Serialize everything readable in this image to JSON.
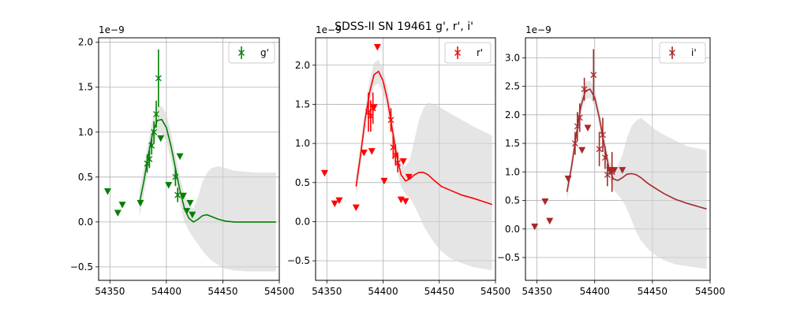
{
  "figure": {
    "title": "SDSS-II SN 19461  g', r', i'"
  },
  "chart_data": [
    {
      "type": "scatter",
      "band": "g",
      "color": "#008000",
      "xlim": [
        54340,
        54500
      ],
      "ylim": [
        -0.65,
        2.05
      ],
      "y_multiplier": "1e−9",
      "xticks": [
        54350,
        54400,
        54450,
        54500
      ],
      "yticks": [
        -0.5,
        0.0,
        0.5,
        1.0,
        1.5,
        2.0
      ],
      "ytick_labels": [
        "−0.5",
        "0.0",
        "0.5",
        "1.0",
        "1.5",
        "2.0"
      ],
      "legend": {
        "label": "g'",
        "loc": "upper right"
      },
      "grid": true,
      "detections": [
        {
          "x": 54383,
          "y": 0.65,
          "err": 0.1
        },
        {
          "x": 54385,
          "y": 0.7,
          "err": 0.1
        },
        {
          "x": 54387,
          "y": 0.85,
          "err": 0.1
        },
        {
          "x": 54389,
          "y": 1.0,
          "err": 0.12
        },
        {
          "x": 54391,
          "y": 1.2,
          "err": 0.15
        },
        {
          "x": 54393,
          "y": 1.6,
          "err": 0.32
        },
        {
          "x": 54408,
          "y": 0.5,
          "err": 0.1
        },
        {
          "x": 54410,
          "y": 0.3,
          "err": 0.08
        }
      ],
      "upper_limits": [
        {
          "x": 54348,
          "y": 0.34
        },
        {
          "x": 54357,
          "y": 0.1
        },
        {
          "x": 54361,
          "y": 0.19
        },
        {
          "x": 54377,
          "y": 0.21
        },
        {
          "x": 54395,
          "y": 0.93
        },
        {
          "x": 54402,
          "y": 0.41
        },
        {
          "x": 54412,
          "y": 0.73
        },
        {
          "x": 54415,
          "y": 0.29
        },
        {
          "x": 54418,
          "y": 0.12
        },
        {
          "x": 54421,
          "y": 0.21
        },
        {
          "x": 54423,
          "y": 0.08
        }
      ],
      "model": {
        "x": [
          54376,
          54380,
          54384,
          54388,
          54392,
          54396,
          54400,
          54404,
          54408,
          54412,
          54416,
          54420,
          54424,
          54428,
          54432,
          54436,
          54440,
          54446,
          54452,
          54460,
          54470,
          54480,
          54497
        ],
        "y": [
          0.2,
          0.45,
          0.75,
          1.0,
          1.13,
          1.14,
          1.05,
          0.85,
          0.6,
          0.35,
          0.15,
          0.04,
          0.0,
          0.03,
          0.07,
          0.08,
          0.06,
          0.03,
          0.01,
          0.0,
          0.0,
          0.0,
          0.0
        ],
        "lower": [
          0.05,
          0.3,
          0.6,
          0.85,
          0.98,
          0.99,
          0.9,
          0.7,
          0.45,
          0.2,
          0.0,
          -0.1,
          -0.18,
          -0.25,
          -0.32,
          -0.38,
          -0.43,
          -0.48,
          -0.52,
          -0.54,
          -0.55,
          -0.55,
          -0.55
        ],
        "upper": [
          0.35,
          0.6,
          0.9,
          1.15,
          1.28,
          1.29,
          1.2,
          1.0,
          0.75,
          0.5,
          0.3,
          0.18,
          0.15,
          0.28,
          0.45,
          0.55,
          0.6,
          0.62,
          0.6,
          0.57,
          0.56,
          0.55,
          0.55
        ]
      }
    },
    {
      "type": "scatter",
      "band": "r",
      "color": "#ff0000",
      "xlim": [
        54340,
        54500
      ],
      "ylim": [
        -0.75,
        2.35
      ],
      "y_multiplier": "1e−9",
      "xticks": [
        54350,
        54400,
        54450,
        54500
      ],
      "yticks": [
        -0.5,
        0.0,
        0.5,
        1.0,
        1.5,
        2.0
      ],
      "ytick_labels": [
        "−0.5",
        "0.0",
        "0.5",
        "1.0",
        "1.5",
        "2.0"
      ],
      "legend": {
        "label": "r'",
        "loc": "upper right"
      },
      "grid": true,
      "detections": [
        {
          "x": 54387,
          "y": 1.4,
          "err": 0.25
        },
        {
          "x": 54389,
          "y": 1.35,
          "err": 0.2
        },
        {
          "x": 54391,
          "y": 1.45,
          "err": 0.2
        },
        {
          "x": 54407,
          "y": 1.3,
          "err": 0.15
        },
        {
          "x": 54409,
          "y": 0.95,
          "err": 0.15
        },
        {
          "x": 54411,
          "y": 0.85,
          "err": 0.12
        },
        {
          "x": 54413,
          "y": 0.75,
          "err": 0.12
        }
      ],
      "upper_limits": [
        {
          "x": 54348,
          "y": 0.62
        },
        {
          "x": 54357,
          "y": 0.23
        },
        {
          "x": 54361,
          "y": 0.27
        },
        {
          "x": 54376,
          "y": 0.18
        },
        {
          "x": 54383,
          "y": 0.88
        },
        {
          "x": 54390,
          "y": 0.9
        },
        {
          "x": 54392,
          "y": 1.46
        },
        {
          "x": 54395,
          "y": 2.23
        },
        {
          "x": 54401,
          "y": 0.52
        },
        {
          "x": 54416,
          "y": 0.28
        },
        {
          "x": 54418,
          "y": 0.77
        },
        {
          "x": 54420,
          "y": 0.26
        },
        {
          "x": 54423,
          "y": 0.57
        }
      ],
      "model": {
        "x": [
          54376,
          54380,
          54384,
          54388,
          54392,
          54396,
          54400,
          54404,
          54408,
          54412,
          54416,
          54420,
          54424,
          54428,
          54432,
          54436,
          54440,
          54446,
          54452,
          54460,
          54470,
          54480,
          54497
        ],
        "y": [
          0.45,
          0.85,
          1.3,
          1.65,
          1.88,
          1.92,
          1.8,
          1.55,
          1.2,
          0.85,
          0.6,
          0.52,
          0.55,
          0.6,
          0.63,
          0.63,
          0.6,
          0.52,
          0.45,
          0.4,
          0.34,
          0.3,
          0.22
        ],
        "lower": [
          0.3,
          0.7,
          1.15,
          1.5,
          1.73,
          1.77,
          1.65,
          1.4,
          1.05,
          0.7,
          0.45,
          0.35,
          0.3,
          0.2,
          0.08,
          -0.05,
          -0.15,
          -0.28,
          -0.38,
          -0.47,
          -0.53,
          -0.58,
          -0.62
        ],
        "upper": [
          0.6,
          1.0,
          1.45,
          1.8,
          2.03,
          2.07,
          1.95,
          1.7,
          1.35,
          1.0,
          0.75,
          0.7,
          0.8,
          1.05,
          1.3,
          1.45,
          1.52,
          1.5,
          1.45,
          1.38,
          1.3,
          1.22,
          1.1
        ]
      }
    },
    {
      "type": "scatter",
      "band": "i",
      "color": "#a52a2a",
      "xlim": [
        54340,
        54500
      ],
      "ylim": [
        -0.9,
        3.35
      ],
      "y_multiplier": "1e−9",
      "xticks": [
        54350,
        54400,
        54450,
        54500
      ],
      "yticks": [
        -0.5,
        0.0,
        0.5,
        1.0,
        1.5,
        2.0,
        2.5,
        3.0
      ],
      "ytick_labels": [
        "−0.5",
        "0.0",
        "0.5",
        "1.0",
        "1.5",
        "2.0",
        "2.5",
        "3.0"
      ],
      "legend": {
        "label": "i'",
        "loc": "upper right"
      },
      "grid": true,
      "detections": [
        {
          "x": 54383,
          "y": 1.5,
          "err": 0.2
        },
        {
          "x": 54385,
          "y": 1.8,
          "err": 0.25
        },
        {
          "x": 54387,
          "y": 1.95,
          "err": 0.25
        },
        {
          "x": 54391,
          "y": 2.45,
          "err": 0.2
        },
        {
          "x": 54399,
          "y": 2.7,
          "err": 0.45
        },
        {
          "x": 54404,
          "y": 1.4,
          "err": 0.3
        },
        {
          "x": 54407,
          "y": 1.65,
          "err": 0.3
        },
        {
          "x": 54409,
          "y": 1.25,
          "err": 0.2
        },
        {
          "x": 54411,
          "y": 0.95,
          "err": 0.2
        },
        {
          "x": 54415,
          "y": 1.0,
          "err": 0.35
        }
      ],
      "upper_limits": [
        {
          "x": 54348,
          "y": 0.04
        },
        {
          "x": 54357,
          "y": 0.48
        },
        {
          "x": 54361,
          "y": 0.14
        },
        {
          "x": 54377,
          "y": 0.88
        },
        {
          "x": 54389,
          "y": 1.38
        },
        {
          "x": 54394,
          "y": 1.77
        },
        {
          "x": 54413,
          "y": 1.03
        },
        {
          "x": 54417,
          "y": 1.03
        },
        {
          "x": 54424,
          "y": 1.03
        }
      ],
      "model": {
        "x": [
          54376,
          54380,
          54384,
          54388,
          54392,
          54396,
          54400,
          54404,
          54408,
          54412,
          54416,
          54420,
          54424,
          54428,
          54432,
          54436,
          54440,
          54446,
          54452,
          54460,
          54470,
          54480,
          54497
        ],
        "y": [
          0.65,
          1.1,
          1.65,
          2.15,
          2.42,
          2.45,
          2.3,
          1.95,
          1.5,
          1.1,
          0.88,
          0.85,
          0.9,
          0.96,
          0.97,
          0.95,
          0.9,
          0.8,
          0.72,
          0.62,
          0.52,
          0.45,
          0.35
        ],
        "lower": [
          0.5,
          0.95,
          1.5,
          2.0,
          2.27,
          2.3,
          2.15,
          1.8,
          1.35,
          0.95,
          0.7,
          0.6,
          0.5,
          0.35,
          0.15,
          -0.05,
          -0.2,
          -0.35,
          -0.45,
          -0.55,
          -0.62,
          -0.65,
          -0.7
        ],
        "upper": [
          0.8,
          1.25,
          1.8,
          2.3,
          2.57,
          2.6,
          2.45,
          2.1,
          1.65,
          1.25,
          1.05,
          1.1,
          1.3,
          1.6,
          1.8,
          1.9,
          1.95,
          1.85,
          1.75,
          1.65,
          1.55,
          1.45,
          1.38
        ]
      }
    }
  ]
}
